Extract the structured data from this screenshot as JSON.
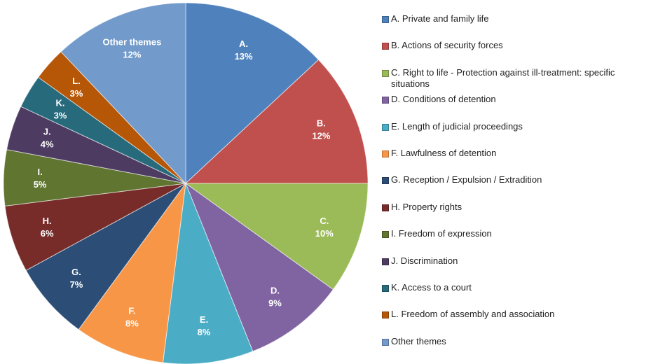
{
  "chart_data": {
    "type": "pie",
    "categories": [
      "A. Private and family life",
      "B. Actions of security forces",
      "C. Right to life - Protection against ill-treatment: specific situations",
      "D. Conditions of detention",
      "E. Length of judicial proceedings",
      "F. Lawfulness of detention",
      "G. Reception / Expulsion / Extradition",
      "H. Property rights",
      "I. Freedom of expression",
      "J. Discrimination",
      "K. Access to a court",
      "L. Freedom of assembly and association",
      "Other themes"
    ],
    "slice_labels": [
      "A.",
      "B.",
      "C.",
      "D.",
      "E.",
      "F.",
      "G.",
      "H.",
      "I.",
      "J.",
      "K.",
      "L.",
      "Other themes"
    ],
    "values": [
      13,
      12,
      10,
      9,
      8,
      8,
      7,
      6,
      5,
      4,
      3,
      3,
      12
    ],
    "value_labels": [
      "13%",
      "12%",
      "10%",
      "9%",
      "8%",
      "8%",
      "7%",
      "6%",
      "5%",
      "4%",
      "3%",
      "3%",
      "12%"
    ],
    "colors": [
      "#4f81bd",
      "#c0504d",
      "#9bbb59",
      "#8064a2",
      "#4bacc6",
      "#f79646",
      "#2c4d75",
      "#772c2a",
      "#5f7530",
      "#4d3b62",
      "#276a7c",
      "#b65708",
      "#729aca"
    ],
    "legend": "right"
  }
}
